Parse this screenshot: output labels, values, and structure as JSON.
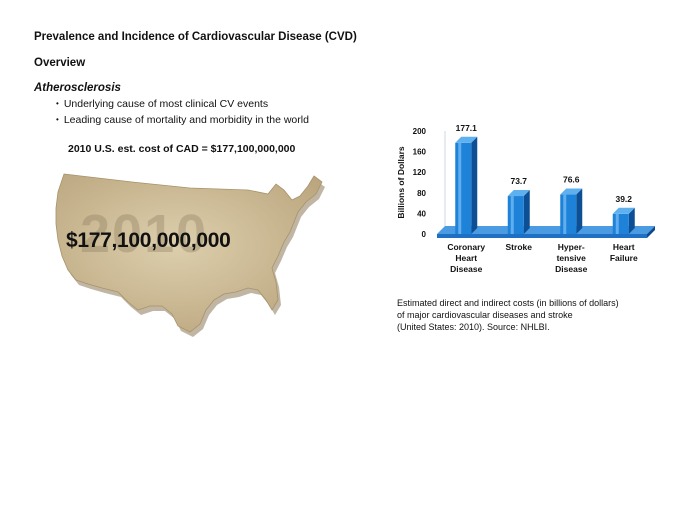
{
  "page": {
    "title": "Prevalence and Incidence of Cardiovascular Disease (CVD)",
    "section": "Overview",
    "subtitle": "Atherosclerosis",
    "bullets": [
      "Underlying cause of most clinical CV events",
      "Leading cause of mortality and morbidity in the world"
    ],
    "cost_line": "2010 U.S. est. cost of CAD = $177,100,000,000",
    "big_cost": "$177,100,000,000",
    "watermark_year": "2010",
    "caption_lines": [
      "Estimated direct and indirect costs (in billions of dollars)",
      "of major cardiovascular diseases and stroke",
      "(United States: 2010). Source: NHLBI."
    ]
  },
  "colors": {
    "map_fill": "#cdbb98",
    "map_shadow": "#8c7a58",
    "bar_blue": "#1e82d9",
    "bar_dark": "#0c4f95",
    "axis_blue": "#1f6fc4"
  },
  "chart_data": {
    "type": "bar",
    "ylabel": "Billions of Dollars",
    "ylim": [
      0,
      200
    ],
    "yticks": [
      0,
      40,
      80,
      120,
      160,
      200
    ],
    "categories": [
      [
        "Coronary",
        "Heart",
        "Disease"
      ],
      [
        "Stroke"
      ],
      [
        "Hyper-",
        "tensive",
        "Disease"
      ],
      [
        "Heart",
        "Failure"
      ]
    ],
    "values": [
      177.1,
      73.7,
      76.6,
      39.2
    ],
    "labels": [
      "177.1",
      "73.7",
      "76.6",
      "39.2"
    ],
    "grid": false,
    "legend": "none"
  }
}
